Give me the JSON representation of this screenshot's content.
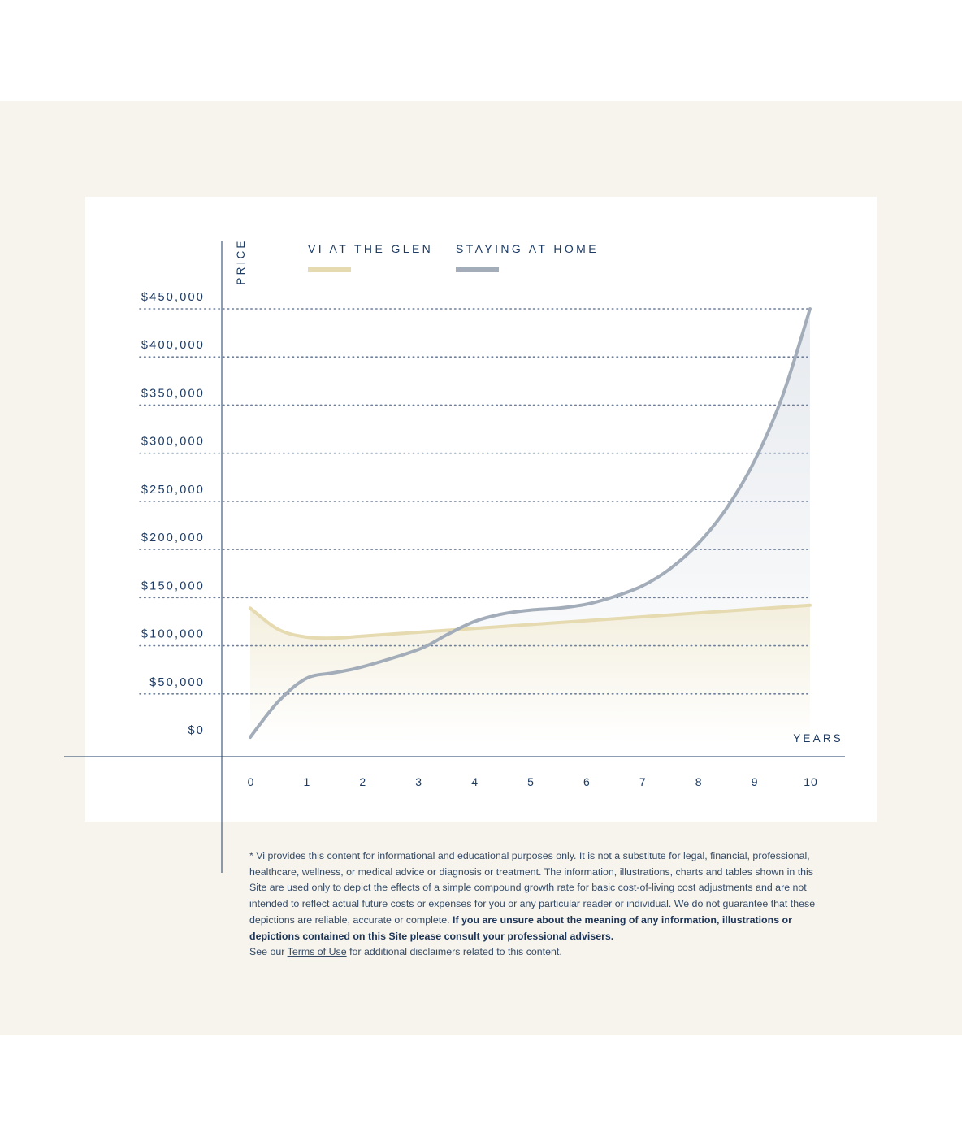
{
  "chart_data": {
    "type": "area",
    "x_axis_label": "YEARS",
    "y_axis_label": "PRICE",
    "x_ticks": [
      "0",
      "1",
      "2",
      "3",
      "4",
      "5",
      "6",
      "7",
      "8",
      "9",
      "10"
    ],
    "y_ticks": [
      "$0",
      "$50,000",
      "$100,000",
      "$150,000",
      "$200,000",
      "$250,000",
      "$300,000",
      "$350,000",
      "$400,000",
      "$450,000"
    ],
    "xlim": [
      0,
      10
    ],
    "ylim": [
      0,
      450000
    ],
    "grid": "dotted horizontal",
    "legend_position": "top",
    "series": [
      {
        "name": "VI AT THE GLEN",
        "color": "#e6dab1",
        "fill": "#f4efde",
        "x": [
          0,
          0.5,
          1,
          1.5,
          2,
          3,
          4,
          5,
          6,
          7,
          8,
          9,
          10
        ],
        "y": [
          139000,
          117000,
          109000,
          108000,
          110000,
          114000,
          118000,
          122000,
          126000,
          130000,
          134000,
          138000,
          142000
        ]
      },
      {
        "name": "STAYING AT HOME",
        "color": "#a3adba",
        "fill": "#e3e7ed",
        "x": [
          0,
          0.5,
          1,
          1.5,
          2,
          3,
          3.5,
          4,
          4.5,
          5,
          5.5,
          6,
          6.5,
          7,
          7.5,
          8,
          8.5,
          9,
          9.5,
          10
        ],
        "y": [
          5000,
          42000,
          66000,
          72000,
          78000,
          96000,
          111000,
          125000,
          133000,
          137000,
          139000,
          143000,
          151000,
          162000,
          180000,
          206000,
          242000,
          291000,
          358000,
          450000
        ]
      }
    ]
  },
  "disclaimer": {
    "line1": "* Vi provides this content for informational and educational purposes only. It is not a substitute for legal, financial, professional, healthcare, wellness, or medical advice or diagnosis or treatment. The information, illustrations, charts and tables shown in this Site are used only to depict the effects of a simple compound growth rate for basic cost-of-living cost adjustments and are not intended to reflect actual future costs or expenses for you or any particular reader or individual. We do not guarantee that these depictions are reliable, accurate or complete.",
    "bold": "If you are unsure about the meaning of any information, illustrations or depictions contained on this Site please consult your professional advisers.",
    "see_our": "See our",
    "terms_link": "Terms of Use",
    "after_link": "for additional disclaimers related to this content."
  }
}
